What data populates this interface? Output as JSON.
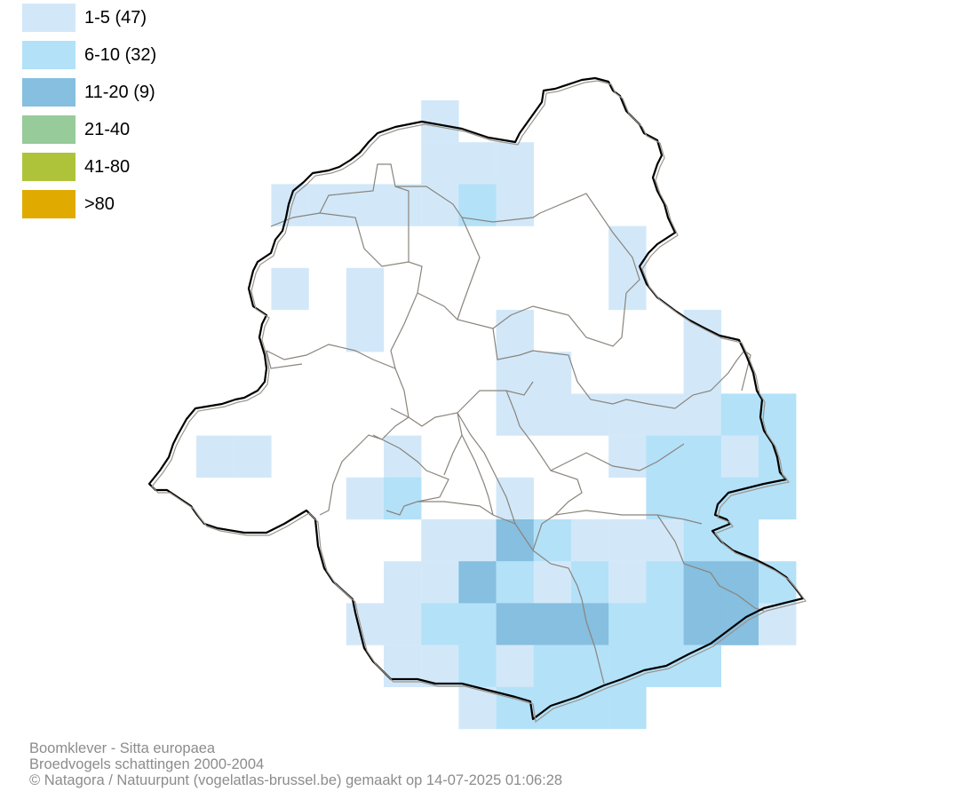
{
  "legend": [
    {
      "label": "1-5 (47)",
      "color": "#d2e8f9"
    },
    {
      "label": "6-10 (32)",
      "color": "#b3e1f8"
    },
    {
      "label": "11-20 (9)",
      "color": "#86bfdf"
    },
    {
      "label": "21-40",
      "color": "#97cb99"
    },
    {
      "label": "41-80",
      "color": "#afc33a"
    },
    {
      "label": ">80",
      "color": "#e0aa00"
    }
  ],
  "credits": {
    "line1": "Boomklever - Sitta europaea",
    "line2": "Broedvogels schattingen 2000-2004",
    "line3": "© Natagora / Natuurpunt (vogelatlas-brussel.be) gemaakt op 14-07-2025 01:06:28"
  }
}
